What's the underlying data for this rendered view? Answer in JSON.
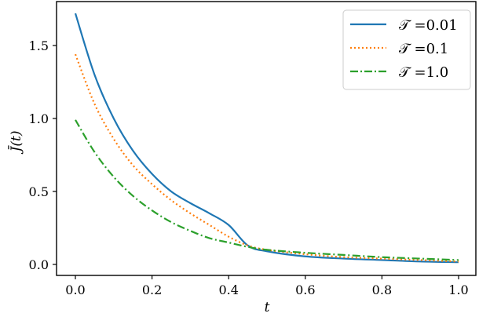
{
  "chart_data": {
    "type": "line",
    "title": "",
    "xlabel": "t",
    "ylabel": "J̄(t)",
    "xlim": [
      -0.05,
      1.05
    ],
    "ylim": [
      -0.07,
      1.8
    ],
    "xticks": [
      0.0,
      0.2,
      0.4,
      0.6,
      0.8,
      1.0
    ],
    "xtick_labels": [
      "0.0",
      "0.2",
      "0.4",
      "0.6",
      "0.8",
      "1.0"
    ],
    "yticks": [
      0.0,
      0.5,
      1.0,
      1.5
    ],
    "ytick_labels": [
      "0.0",
      "0.5",
      "1.0",
      "1.5"
    ],
    "grid": false,
    "legend_position": "upper right",
    "x": [
      0.0,
      0.05,
      0.1,
      0.15,
      0.2,
      0.25,
      0.3,
      0.35,
      0.4,
      0.45,
      0.5,
      0.6,
      0.7,
      0.8,
      0.9,
      1.0
    ],
    "series": [
      {
        "name": "𝒯 =0.01",
        "color": "#1f77b4",
        "linestyle": "solid",
        "values": [
          1.72,
          1.3,
          1.0,
          0.78,
          0.62,
          0.5,
          0.42,
          0.35,
          0.27,
          0.13,
          0.09,
          0.055,
          0.04,
          0.03,
          0.02,
          0.015
        ]
      },
      {
        "name": "𝒯 =0.1",
        "color": "#ff7f0e",
        "linestyle": "dotted",
        "values": [
          1.44,
          1.1,
          0.86,
          0.68,
          0.55,
          0.44,
          0.35,
          0.27,
          0.19,
          0.13,
          0.1,
          0.07,
          0.05,
          0.04,
          0.03,
          0.02
        ]
      },
      {
        "name": "𝒯 =1.0",
        "color": "#2ca02c",
        "linestyle": "dashdot",
        "values": [
          0.99,
          0.77,
          0.6,
          0.47,
          0.37,
          0.29,
          0.23,
          0.18,
          0.15,
          0.12,
          0.1,
          0.08,
          0.065,
          0.05,
          0.04,
          0.03
        ]
      }
    ]
  },
  "legend": {
    "items": [
      {
        "label": "𝒯 =0.01"
      },
      {
        "label": "𝒯 =0.1"
      },
      {
        "label": "𝒯 =1.0"
      }
    ]
  },
  "axes": {
    "xlabel": "t",
    "ylabel": "J̄(t)"
  }
}
